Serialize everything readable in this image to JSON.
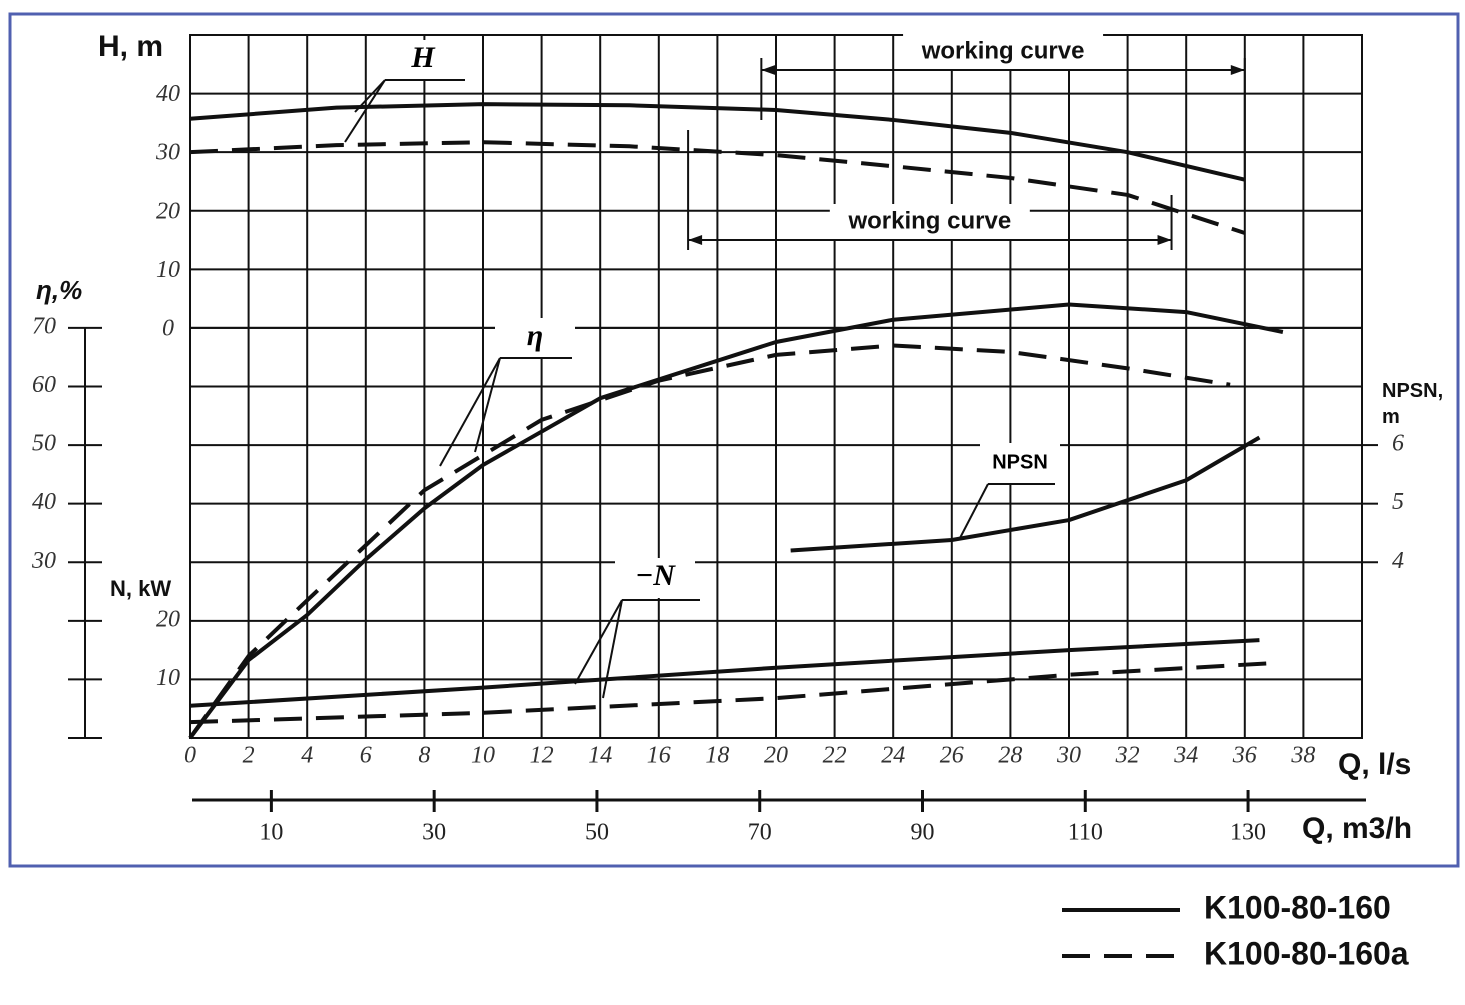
{
  "chart_data": {
    "type": "line",
    "xlabel": "Q, l/s",
    "xlim": [
      0,
      40
    ],
    "xticks": [
      0,
      2,
      4,
      6,
      8,
      10,
      12,
      14,
      16,
      18,
      20,
      22,
      24,
      26,
      28,
      30,
      32,
      34,
      36,
      38
    ],
    "x2label": "Q, m3/h",
    "x2lim": [
      0,
      144
    ],
    "x2ticks": [
      10,
      30,
      50,
      70,
      90,
      110,
      130
    ],
    "grid": true,
    "axes": {
      "H": {
        "label": "H, m",
        "lim": [
          -70,
          50
        ],
        "ticks": [
          0,
          10,
          20,
          30,
          40
        ]
      },
      "eta": {
        "label": "η,%",
        "lim": [
          0,
          120
        ],
        "ticks": [
          30,
          40,
          50,
          60,
          70
        ]
      },
      "N": {
        "label": "N, kW",
        "lim": [
          0,
          120
        ],
        "ticks": [
          10,
          20
        ]
      },
      "NPSN": {
        "label": "NPSN, m",
        "lim": [
          1,
          13
        ],
        "ticks": [
          4,
          5,
          6
        ]
      }
    },
    "series": [
      {
        "name": "K100-80-160",
        "color": "#111111",
        "style": "solid",
        "curves": [
          {
            "axis": "H",
            "x": [
              0,
              5,
              10,
              15,
              20,
              24,
              28,
              32,
              36
            ],
            "values": [
              35.7,
              37.6,
              38.2,
              38,
              37.2,
              35.5,
              33.3,
              30,
              25.3
            ]
          },
          {
            "axis": "eta",
            "x": [
              0,
              2,
              4,
              6,
              8,
              10,
              14,
              20,
              24,
              30,
              34,
              37.3
            ],
            "values": [
              0,
              13.3,
              21,
              30.5,
              39.2,
              46.6,
              58,
              67.6,
              71.4,
              74,
              72.7,
              69.3
            ]
          },
          {
            "axis": "N",
            "x": [
              0,
              10,
              20,
              30,
              36.5
            ],
            "values": [
              5.5,
              8.6,
              12,
              15,
              16.7
            ]
          },
          {
            "axis": "NPSN",
            "x": [
              20.5,
              26,
              30,
              34,
              36.5
            ],
            "values": [
              4.2,
              4.38,
              4.72,
              5.4,
              6.13
            ]
          }
        ]
      },
      {
        "name": "K100-80-160a",
        "color": "#111111",
        "style": "dashed",
        "curves": [
          {
            "axis": "H",
            "x": [
              0,
              5,
              10,
              15,
              20,
              24,
              28,
              32,
              36
            ],
            "values": [
              30,
              31.2,
              31.7,
              31,
              29.5,
              27.6,
              25.6,
              22.7,
              16.2
            ]
          },
          {
            "axis": "eta",
            "x": [
              0,
              2,
              4,
              8,
              12,
              16,
              20,
              24,
              28,
              32,
              35.5
            ],
            "values": [
              0,
              14,
              23.5,
              42.3,
              54.3,
              61,
              65.4,
              67,
              65.9,
              63.1,
              60.3
            ]
          },
          {
            "axis": "N",
            "x": [
              0,
              10,
              20,
              30,
              37
            ],
            "values": [
              2.7,
              4.3,
              6.8,
              10.8,
              12.8
            ]
          }
        ]
      }
    ],
    "annotations": [
      {
        "text": "H"
      },
      {
        "text": "η"
      },
      {
        "text": "−N"
      },
      {
        "text": "NPSN"
      },
      {
        "text": "working curve",
        "x_range": [
          19.5,
          36
        ]
      },
      {
        "text": "working curve",
        "x_range": [
          17,
          33.5
        ]
      }
    ]
  }
}
